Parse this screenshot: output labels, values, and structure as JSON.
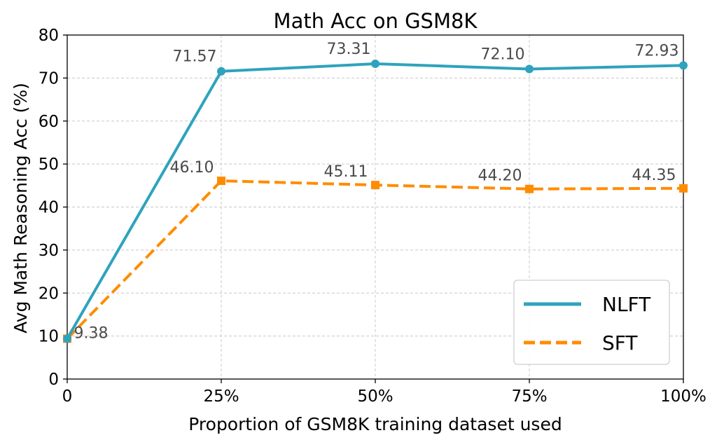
{
  "chart_data": {
    "type": "line",
    "title": "Math Acc on GSM8K",
    "xlabel": "Proportion of GSM8K training dataset used",
    "ylabel": "Avg Math Reasoning Acc (%)",
    "categories": [
      "0",
      "25%",
      "50%",
      "75%",
      "100%"
    ],
    "x": [
      0,
      25,
      50,
      75,
      100
    ],
    "xlim": [
      0,
      100
    ],
    "ylim": [
      0,
      80
    ],
    "yticks": [
      0,
      10,
      20,
      30,
      40,
      50,
      60,
      70,
      80
    ],
    "grid": true,
    "legend_position": "bottom-right",
    "series": [
      {
        "name": "NLFT",
        "values": [
          9.38,
          71.57,
          73.31,
          72.1,
          72.93
        ],
        "labels": [
          "9.38",
          "71.57",
          "73.31",
          "72.10",
          "72.93"
        ],
        "color": "#2ea3bd",
        "style": "solid",
        "marker": "circle"
      },
      {
        "name": "SFT",
        "values": [
          9.38,
          46.1,
          45.11,
          44.2,
          44.35
        ],
        "labels": [
          "",
          "46.10",
          "45.11",
          "44.20",
          "44.35"
        ],
        "color": "#ff8c00",
        "style": "dashed",
        "marker": "square"
      }
    ]
  }
}
